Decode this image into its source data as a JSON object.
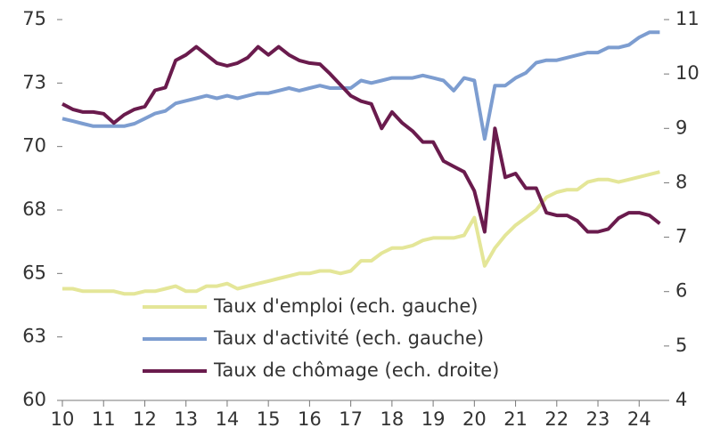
{
  "chart_data": {
    "type": "line",
    "x": [
      10,
      10.25,
      10.5,
      10.75,
      11,
      11.25,
      11.5,
      11.75,
      12,
      12.25,
      12.5,
      12.75,
      13,
      13.25,
      13.5,
      13.75,
      14,
      14.25,
      14.5,
      14.75,
      15,
      15.25,
      15.5,
      15.75,
      16,
      16.25,
      16.5,
      16.75,
      17,
      17.25,
      17.5,
      17.75,
      18,
      18.25,
      18.5,
      18.75,
      19,
      19.25,
      19.5,
      19.75,
      20,
      20.25,
      20.5,
      20.75,
      21,
      21.25,
      21.5,
      21.75,
      22,
      22.25,
      22.5,
      22.75,
      23,
      23.25,
      23.5,
      23.75,
      24,
      24.25,
      24.5
    ],
    "series": [
      {
        "name": "Taux d'emploi (ech. gauche)",
        "color": "#e4e698",
        "values": [
          64.4,
          64.4,
          64.3,
          64.3,
          64.3,
          64.3,
          64.2,
          64.2,
          64.3,
          64.3,
          64.4,
          64.5,
          64.3,
          64.3,
          64.5,
          64.5,
          64.6,
          64.4,
          64.5,
          64.6,
          64.7,
          64.8,
          64.9,
          65.0,
          65.0,
          65.1,
          65.1,
          65.0,
          65.1,
          65.5,
          65.5,
          65.8,
          66.0,
          66.0,
          66.1,
          66.3,
          66.4,
          66.4,
          66.4,
          66.5,
          67.2,
          65.3,
          66.0,
          66.5,
          66.9,
          67.2,
          67.5,
          68.0,
          68.2,
          68.3,
          68.3,
          68.6,
          68.7,
          68.7,
          68.6,
          68.7,
          68.8,
          68.9,
          69.0
        ]
      },
      {
        "name": "Taux d'activité (ech. gauche)",
        "color": "#7d9dd0",
        "values": [
          71.1,
          71.0,
          70.9,
          70.8,
          70.8,
          70.8,
          70.8,
          70.9,
          71.1,
          71.3,
          71.4,
          71.7,
          71.8,
          71.9,
          72.0,
          71.9,
          72.0,
          71.9,
          72.0,
          72.1,
          72.1,
          72.2,
          72.3,
          72.2,
          72.3,
          72.4,
          72.3,
          72.3,
          72.3,
          72.6,
          72.5,
          72.6,
          72.7,
          72.7,
          72.7,
          72.8,
          72.7,
          72.6,
          72.2,
          72.7,
          72.6,
          70.3,
          72.4,
          72.4,
          72.7,
          72.9,
          73.3,
          73.4,
          73.4,
          73.5,
          73.6,
          73.7,
          73.7,
          73.9,
          73.9,
          74.0,
          74.3,
          74.5,
          74.5
        ]
      },
      {
        "name": "Taux de chômage (ech. droite)",
        "color": "#6a1b4d",
        "axis": "y2",
        "values": [
          9.45,
          9.35,
          9.3,
          9.3,
          9.27,
          9.1,
          9.25,
          9.35,
          9.4,
          9.7,
          9.75,
          10.25,
          10.35,
          10.5,
          10.35,
          10.2,
          10.15,
          10.2,
          10.3,
          10.5,
          10.35,
          10.5,
          10.35,
          10.25,
          10.2,
          10.18,
          10.0,
          9.8,
          9.6,
          9.5,
          9.45,
          9.0,
          9.3,
          9.1,
          8.95,
          8.75,
          8.75,
          8.4,
          8.3,
          8.2,
          7.85,
          7.1,
          9.0,
          8.1,
          8.17,
          7.9,
          7.9,
          7.45,
          7.4,
          7.4,
          7.3,
          7.1,
          7.1,
          7.15,
          7.35,
          7.45,
          7.45,
          7.4,
          7.25
        ]
      }
    ],
    "xlim": [
      10,
      24.6
    ],
    "xticks": [
      10,
      11,
      12,
      13,
      14,
      15,
      16,
      17,
      18,
      19,
      20,
      21,
      22,
      23,
      24
    ],
    "ylim": [
      60,
      75
    ],
    "yticks": [
      60,
      {
        "value": 62.5,
        "label": "63"
      },
      65,
      {
        "value": 67.5,
        "label": "68"
      },
      70,
      {
        "value": 72.5,
        "label": "73"
      },
      75
    ],
    "y2lim": [
      4,
      11
    ],
    "y2ticks": [
      4,
      5,
      6,
      7,
      8,
      9,
      10,
      11
    ],
    "legend": "lower center",
    "grid": false
  }
}
